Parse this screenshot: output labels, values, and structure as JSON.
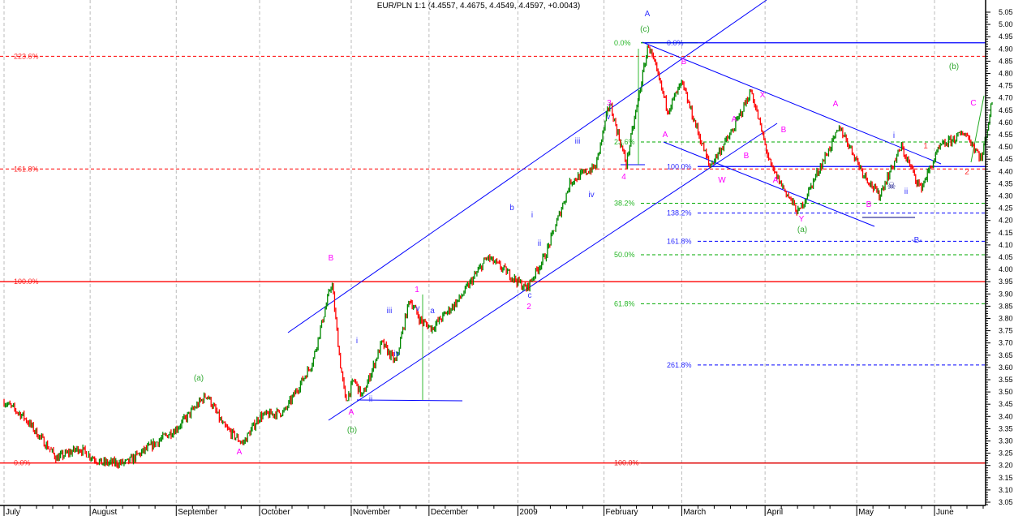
{
  "chart_data": {
    "type": "candlestick",
    "title": "EUR/PLN 1:1 (4.4557, 4.4675, 4.4549, 4.4597, +0.0043)",
    "symbol": "EUR/PLN",
    "ylim": [
      3.05,
      5.05
    ],
    "ytick_step": 0.05,
    "grid": "vertical dashed at month starts",
    "x_months": [
      {
        "label": "July",
        "date": "2008-07-01"
      },
      {
        "label": "August",
        "date": "2008-08-01"
      },
      {
        "label": "September",
        "date": "2008-09-01"
      },
      {
        "label": "October",
        "date": "2008-10-01"
      },
      {
        "label": "November",
        "date": "2008-11-03"
      },
      {
        "label": "December",
        "date": "2008-12-01"
      },
      {
        "label": "2009",
        "date": "2009-01-02"
      },
      {
        "label": "February",
        "date": "2009-02-02"
      },
      {
        "label": "March",
        "date": "2009-03-02"
      },
      {
        "label": "April",
        "date": "2009-04-01"
      },
      {
        "label": "May",
        "date": "2009-05-04"
      },
      {
        "label": "June",
        "date": "2009-06-01"
      }
    ],
    "price_path": [
      [
        "2008-07-01",
        3.46
      ],
      [
        "2008-07-08",
        3.4
      ],
      [
        "2008-07-20",
        3.23
      ],
      [
        "2008-07-28",
        3.27
      ],
      [
        "2008-08-05",
        3.21
      ],
      [
        "2008-08-14",
        3.21
      ],
      [
        "2008-09-01",
        3.35
      ],
      [
        "2008-09-12",
        3.49
      ],
      [
        "2008-09-18",
        3.36
      ],
      [
        "2008-09-25",
        3.29
      ],
      [
        "2008-10-01",
        3.4
      ],
      [
        "2008-10-10",
        3.42
      ],
      [
        "2008-10-20",
        3.62
      ],
      [
        "2008-10-27",
        3.95
      ],
      [
        "2008-10-30",
        3.62
      ],
      [
        "2008-11-01",
        3.46
      ],
      [
        "2008-11-04",
        3.55
      ],
      [
        "2008-11-07",
        3.48
      ],
      [
        "2008-11-14",
        3.7
      ],
      [
        "2008-11-19",
        3.62
      ],
      [
        "2008-11-24",
        3.88
      ],
      [
        "2008-11-28",
        3.79
      ],
      [
        "2008-12-02",
        3.76
      ],
      [
        "2008-12-12",
        3.88
      ],
      [
        "2008-12-22",
        4.05
      ],
      [
        "2008-12-29",
        3.99
      ],
      [
        "2009-01-05",
        3.92
      ],
      [
        "2009-01-12",
        4.06
      ],
      [
        "2009-01-21",
        4.36
      ],
      [
        "2009-01-30",
        4.42
      ],
      [
        "2009-02-04",
        4.68
      ],
      [
        "2009-02-10",
        4.43
      ],
      [
        "2009-02-18",
        4.92
      ],
      [
        "2009-02-25",
        4.65
      ],
      [
        "2009-03-02",
        4.76
      ],
      [
        "2009-03-12",
        4.42
      ],
      [
        "2009-03-20",
        4.56
      ],
      [
        "2009-03-27",
        4.73
      ],
      [
        "2009-04-03",
        4.42
      ],
      [
        "2009-04-13",
        4.23
      ],
      [
        "2009-04-20",
        4.4
      ],
      [
        "2009-04-28",
        4.58
      ],
      [
        "2009-05-06",
        4.4
      ],
      [
        "2009-05-12",
        4.3
      ],
      [
        "2009-05-20",
        4.5
      ],
      [
        "2009-05-27",
        4.33
      ],
      [
        "2009-06-03",
        4.5
      ],
      [
        "2009-06-12",
        4.56
      ],
      [
        "2009-06-18",
        4.45
      ],
      [
        "2009-06-22",
        4.7
      ]
    ],
    "fib_levels": [
      {
        "label": "223.6%",
        "price": 4.87,
        "color": "#ff0000",
        "style": "dashed",
        "group": "left"
      },
      {
        "label": "161.8%",
        "price": 4.41,
        "color": "#ff0000",
        "style": "dashed",
        "group": "left"
      },
      {
        "label": "100.0%",
        "price": 3.95,
        "color": "#ff0000",
        "style": "solid",
        "group": "left"
      },
      {
        "label": "0.0%",
        "price": 3.21,
        "color": "#ff0000",
        "style": "solid",
        "group": "left"
      },
      {
        "label": "0.0%",
        "price": 4.925,
        "color": "#00aa00",
        "style": "solid",
        "group": "green"
      },
      {
        "label": "23.6%",
        "price": 4.52,
        "color": "#00aa00",
        "style": "dashed",
        "group": "green"
      },
      {
        "label": "38.2%",
        "price": 4.27,
        "color": "#00aa00",
        "style": "dashed",
        "group": "green"
      },
      {
        "label": "50.0%",
        "price": 4.06,
        "color": "#00aa00",
        "style": "dashed",
        "group": "green"
      },
      {
        "label": "61.8%",
        "price": 3.86,
        "color": "#00aa00",
        "style": "dashed",
        "group": "green"
      },
      {
        "label": "100.0%",
        "price": 3.21,
        "color": "#dd0000",
        "style": "solid",
        "group": "green"
      },
      {
        "label": "0.0%",
        "price": 4.925,
        "color": "#0000ff",
        "style": "solid",
        "group": "blue"
      },
      {
        "label": "100.0%",
        "price": 4.42,
        "color": "#0000ff",
        "style": "solid",
        "group": "blue"
      },
      {
        "label": "138.2%",
        "price": 4.23,
        "color": "#0000ff",
        "style": "dashed",
        "group": "blue"
      },
      {
        "label": "161.8%",
        "price": 4.115,
        "color": "#0000ff",
        "style": "dashed",
        "group": "blue"
      },
      {
        "label": "261.8%",
        "price": 3.61,
        "color": "#0000ff",
        "style": "dashed",
        "group": "blue"
      }
    ],
    "wave_labels": [
      {
        "text": "A",
        "color": "#3333ff"
      },
      {
        "text": "(c)",
        "color": "#33aa33"
      },
      {
        "text": "B",
        "color": "#ff00ff"
      },
      {
        "text": "3",
        "color": "#ff00ff"
      },
      {
        "text": "v",
        "color": "#3333ff"
      },
      {
        "text": "iii",
        "color": "#3333ff"
      },
      {
        "text": "4",
        "color": "#ff00ff"
      },
      {
        "text": "iv",
        "color": "#3333ff"
      },
      {
        "text": "A",
        "color": "#ff00ff"
      },
      {
        "text": "A",
        "color": "#ff00ff"
      },
      {
        "text": "X",
        "color": "#ff00ff"
      },
      {
        "text": "B",
        "color": "#ff00ff"
      },
      {
        "text": "B",
        "color": "#ff00ff"
      },
      {
        "text": "W",
        "color": "#ff00ff"
      },
      {
        "text": "A",
        "color": "#ff00ff"
      },
      {
        "text": "Y",
        "color": "#ff00ff"
      },
      {
        "text": "(a)",
        "color": "#33aa33"
      },
      {
        "text": "A",
        "color": "#ff00ff"
      },
      {
        "text": "i",
        "color": "#3333ff"
      },
      {
        "text": "1",
        "color": "#ff3333"
      },
      {
        "text": "(b)",
        "color": "#33aa33"
      },
      {
        "text": "C",
        "color": "#ff00ff"
      },
      {
        "text": "2",
        "color": "#ff3333"
      },
      {
        "text": "ii",
        "color": "#3333ff"
      },
      {
        "text": "B",
        "color": "#ff00ff"
      },
      {
        "text": "-B-",
        "color": "#3333ff"
      },
      {
        "text": "b",
        "color": "#3333ff"
      },
      {
        "text": "i",
        "color": "#3333ff"
      },
      {
        "text": "ii",
        "color": "#3333ff"
      },
      {
        "text": "c",
        "color": "#3333ff"
      },
      {
        "text": "2",
        "color": "#ff00ff"
      },
      {
        "text": "a",
        "color": "#3333ff"
      },
      {
        "text": "1",
        "color": "#ff00ff"
      },
      {
        "text": "v",
        "color": "#3333ff"
      },
      {
        "text": "iii",
        "color": "#3333ff"
      },
      {
        "text": "iv",
        "color": "#3333ff"
      },
      {
        "text": "i",
        "color": "#3333ff"
      },
      {
        "text": "ii",
        "color": "#3333ff"
      },
      {
        "text": "A",
        "color": "#ff00ff"
      },
      {
        "text": "(b)",
        "color": "#33aa33"
      },
      {
        "text": "B",
        "color": "#ff00ff"
      },
      {
        "text": "(a)",
        "color": "#33aa33"
      },
      {
        "text": "A",
        "color": "#ff00ff"
      }
    ],
    "up_color": "#008800",
    "down_color": "#ff0000",
    "marker_icon": "skull-crossbones-icon"
  }
}
